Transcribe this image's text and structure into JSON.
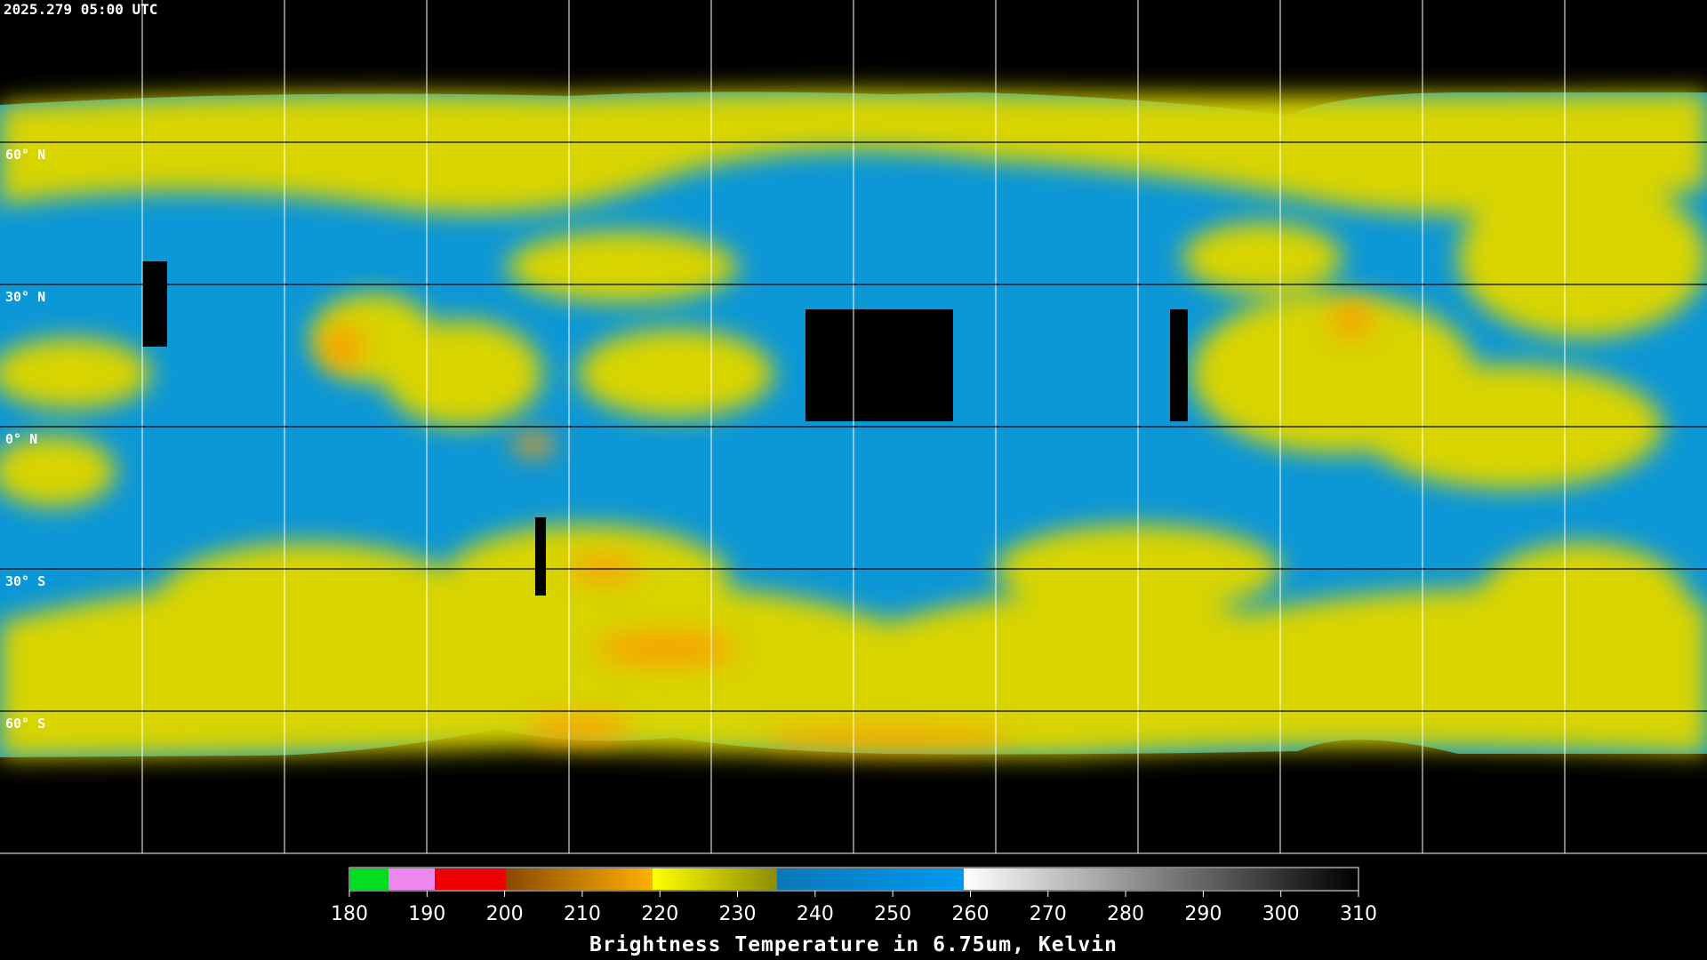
{
  "header": {
    "timestamp": "2025.279 05:00 UTC"
  },
  "map": {
    "lat_labels": [
      "60° N",
      "30° N",
      "0° N",
      "30° S",
      "60° S"
    ]
  },
  "colorbar": {
    "range": [
      180,
      310
    ],
    "ticks": [
      180,
      190,
      200,
      210,
      220,
      230,
      240,
      250,
      260,
      270,
      280,
      290,
      300,
      310
    ],
    "label": "Brightness Temperature in 6.75um, Kelvin"
  }
}
